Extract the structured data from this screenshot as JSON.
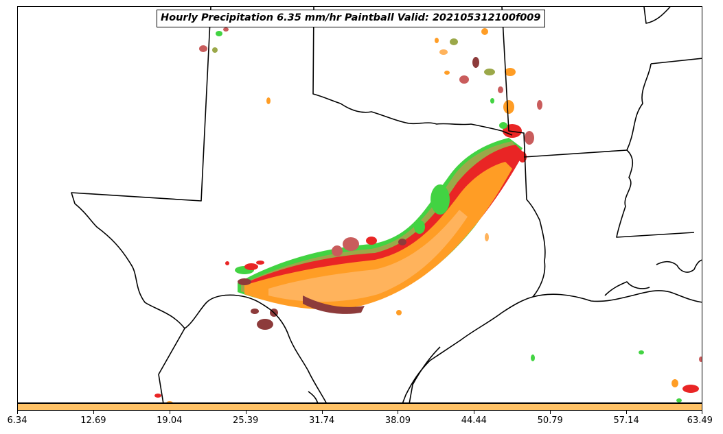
{
  "map": {
    "title": "Hourly Precipitation 6.35 mm/hr Paintball Valid: 202105312100f009",
    "paintball_colors": [
      "#e60000",
      "#ff8c00",
      "#ffa640",
      "#22cc22",
      "#8a9a2a",
      "#7a1a1a",
      "#c04040"
    ],
    "border_color": "#000000"
  },
  "colorbar": {
    "fill_color": "#ffc266",
    "tick_labels": [
      "6.34",
      "12.69",
      "19.04",
      "25.39",
      "31.74",
      "38.09",
      "44.44",
      "50.79",
      "57.14",
      "63.49"
    ]
  }
}
